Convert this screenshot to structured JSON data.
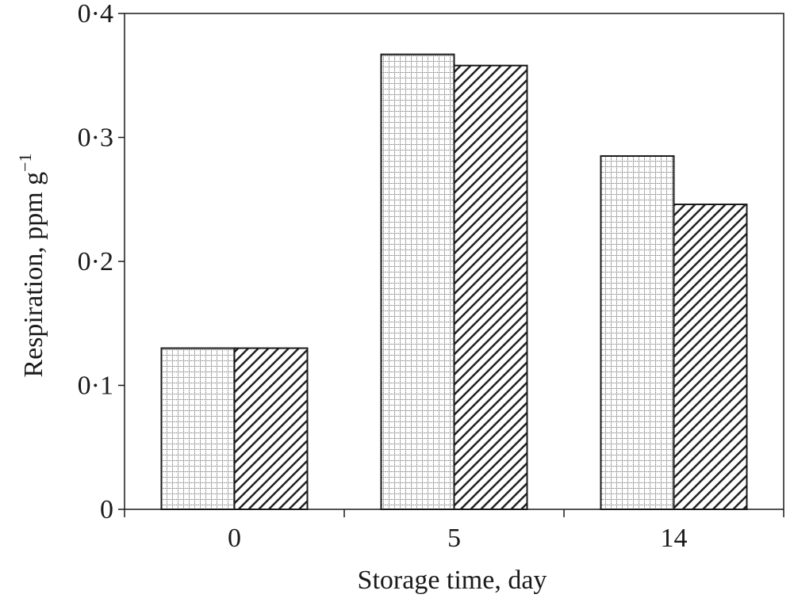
{
  "chart_data": {
    "type": "bar",
    "title": "",
    "categories": [
      "0",
      "5",
      "14"
    ],
    "series": [
      {
        "pattern": "grid",
        "values": [
          0.13,
          0.367,
          0.285
        ]
      },
      {
        "pattern": "diagonal-hatch",
        "values": [
          0.13,
          0.358,
          0.246
        ]
      }
    ],
    "xlabel": "Storage time, day",
    "ylabel": "Respiration, ppm g",
    "ylabel_exponent": "−1",
    "ylim": [
      0,
      0.4
    ],
    "yticks": [
      0,
      0.1,
      0.2,
      0.3,
      0.4
    ],
    "ytick_labels": [
      "0",
      "0·1",
      "0·2",
      "0·3",
      "0·4"
    ],
    "grid": false,
    "legend": "none",
    "colors": {
      "axis": "#1a1a1a",
      "bar_fill": "#ffffff",
      "pattern": "#333333"
    }
  }
}
